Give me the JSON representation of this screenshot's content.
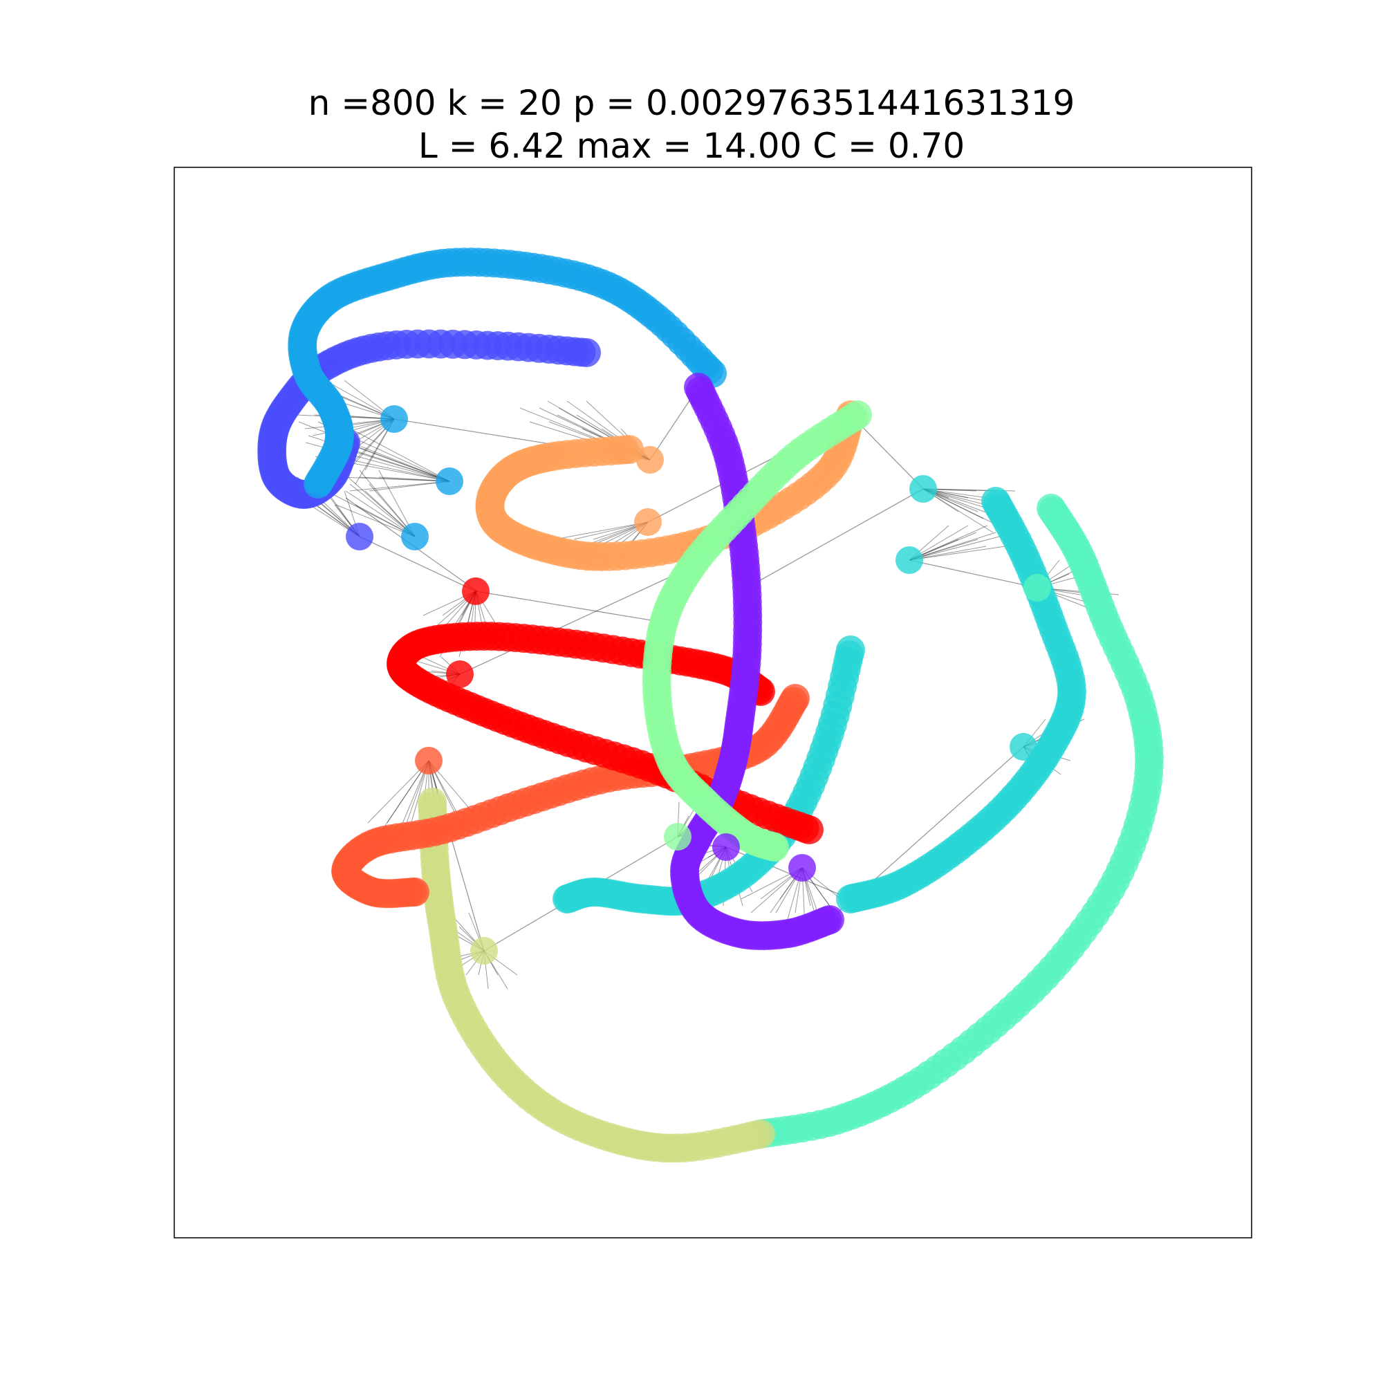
{
  "figure": {
    "title_line_1": "n =800 k = 20 p = 0.002976351441631319",
    "title_line_2": "L = 6.42 max = 14.00 C = 0.70"
  },
  "colors": {
    "background": "#ffffff",
    "frame": "#000000",
    "edge": "#000000",
    "palette": [
      "#7f1fff",
      "#4b4dfc",
      "#17a5eb",
      "#28d6d6",
      "#57f4c1",
      "#8cfc9d",
      "#d0dd84",
      "#ffa15a",
      "#ff5733",
      "#ff0000"
    ]
  },
  "graph": {
    "nodes": 800,
    "ring_neighbors_k": 20,
    "rewire_probability": 0.002976351441631319,
    "avg_path_length": 6.42,
    "max_path_length": 14.0,
    "clustering": 0.7,
    "node_shape": "circle",
    "node_alpha": 0.8,
    "edge_alpha": 0.4
  }
}
